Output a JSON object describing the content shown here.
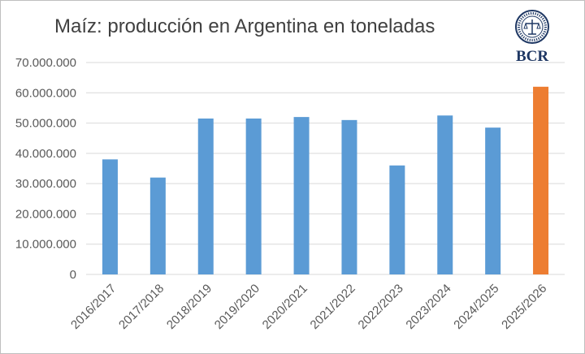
{
  "chart_data": {
    "type": "bar",
    "title": "Maíz: producción en Argentina en toneladas",
    "xlabel": "",
    "ylabel": "",
    "categories": [
      "2016/2017",
      "2017/2018",
      "2018/2019",
      "2019/2020",
      "2020/2021",
      "2021/2022",
      "2022/2023",
      "2023/2024",
      "2024/2025",
      "2025/2026"
    ],
    "values": [
      38000000,
      32000000,
      51500000,
      51500000,
      52000000,
      51000000,
      36000000,
      52500000,
      48500000,
      62000000
    ],
    "ylim": [
      0,
      70000000
    ],
    "yticks": [
      "0",
      "10.000.000",
      "20.000.000",
      "30.000.000",
      "40.000.000",
      "50.000.000",
      "60.000.000",
      "70.000.000"
    ],
    "grid": true,
    "legend": "none",
    "colors": {
      "default": "#5b9bd5",
      "highlight": "#ed7d31",
      "grid": "#d9d9d9",
      "tick_text": "#595959",
      "title_text": "#404040"
    },
    "highlight_index": 9
  },
  "logo": {
    "text": "BCR",
    "icon": "bcr-seal-icon"
  }
}
